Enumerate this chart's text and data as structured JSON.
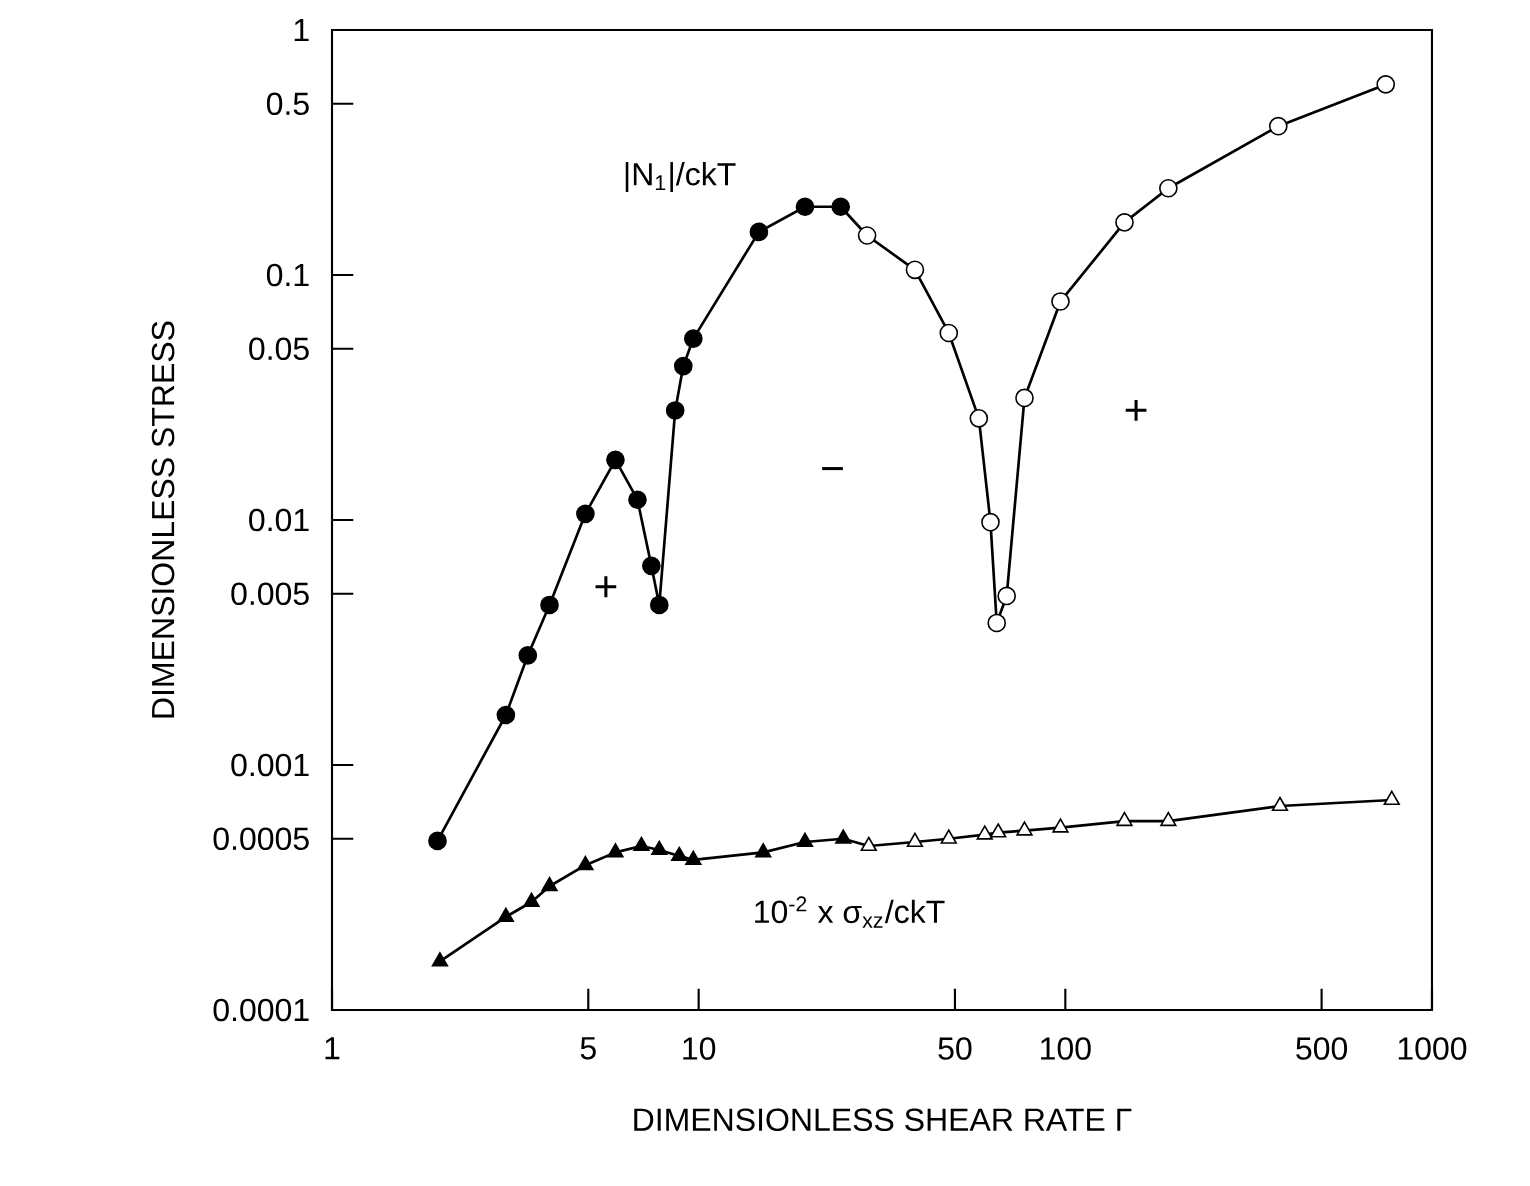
{
  "chart_data": {
    "type": "line",
    "log": "xy",
    "grid": false,
    "xlabel": "DIMENSIONLESS SHEAR RATE Γ",
    "ylabel": "DIMENSIONLESS STRESS",
    "xlim": [
      1,
      1000
    ],
    "ylim": [
      0.0001,
      1
    ],
    "xticks": [
      1,
      5,
      10,
      50,
      100,
      500,
      1000
    ],
    "yticks": [
      0.0001,
      0.0005,
      0.001,
      0.005,
      0.01,
      0.05,
      0.1,
      0.5,
      1
    ],
    "series": [
      {
        "name": "|N$_{1}$|/ckT",
        "color": "#000000",
        "marker": "circle",
        "x": [
          1.94,
          2.98,
          3.42,
          3.92,
          4.91,
          5.93,
          6.81,
          7.43,
          7.81,
          8.63,
          9.08,
          9.67,
          14.6,
          19.5,
          24.4,
          28.8,
          38.9,
          48.1,
          58.1,
          62.5,
          65,
          69.2,
          77.4,
          97,
          145,
          191,
          381,
          748
        ],
        "values": [
          0.00049,
          0.0016,
          0.0028,
          0.0045,
          0.0106,
          0.0176,
          0.0121,
          0.0065,
          0.0045,
          0.028,
          0.0425,
          0.055,
          0.15,
          0.19,
          0.19,
          0.145,
          0.105,
          0.058,
          0.026,
          0.0098,
          0.0038,
          0.0049,
          0.0315,
          0.078,
          0.164,
          0.226,
          0.405,
          0.6
        ],
        "colors": [
          "#000000",
          "#000000",
          "#000000",
          "#000000",
          "#000000",
          "#000000",
          "#000000",
          "#000000",
          "#000000",
          "#000000",
          "#000000",
          "#000000",
          "#000000",
          "#000000",
          "#000000",
          "#ffffff",
          "#ffffff",
          "#ffffff",
          "#ffffff",
          "#ffffff",
          "#ffffff",
          "#ffffff",
          "#ffffff",
          "#ffffff",
          "#ffffff",
          "#ffffff",
          "#ffffff",
          "#ffffff"
        ]
      },
      {
        "name": "10$^{-2}$ x σ$_{xz}$/ckT",
        "color": "#000000",
        "marker": "triangle",
        "x": [
          1.97,
          2.98,
          3.5,
          3.92,
          4.91,
          5.93,
          6.98,
          7.81,
          8.85,
          9.67,
          15,
          19.5,
          24.8,
          29.1,
          38.9,
          48.1,
          60.3,
          65.6,
          77.4,
          97,
          145,
          191,
          385,
          777
        ],
        "values": [
          0.000158,
          0.00024,
          0.000276,
          0.00032,
          0.00039,
          0.00044,
          0.000467,
          0.00045,
          0.000425,
          0.00041,
          0.00044,
          0.000485,
          0.0005,
          0.000467,
          0.000485,
          0.0005,
          0.00052,
          0.00053,
          0.00054,
          0.000555,
          0.00059,
          0.00059,
          0.00068,
          0.00072
        ],
        "colors": [
          "#000000",
          "#000000",
          "#000000",
          "#000000",
          "#000000",
          "#000000",
          "#000000",
          "#000000",
          "#000000",
          "#000000",
          "#000000",
          "#000000",
          "#000000",
          "#ffffff",
          "#ffffff",
          "#ffffff",
          "#ffffff",
          "#ffffff",
          "#ffffff",
          "#ffffff",
          "#ffffff",
          "#ffffff",
          "#ffffff",
          "#ffffff"
        ]
      }
    ],
    "annotations": [
      "+",
      "−",
      "+"
    ]
  }
}
